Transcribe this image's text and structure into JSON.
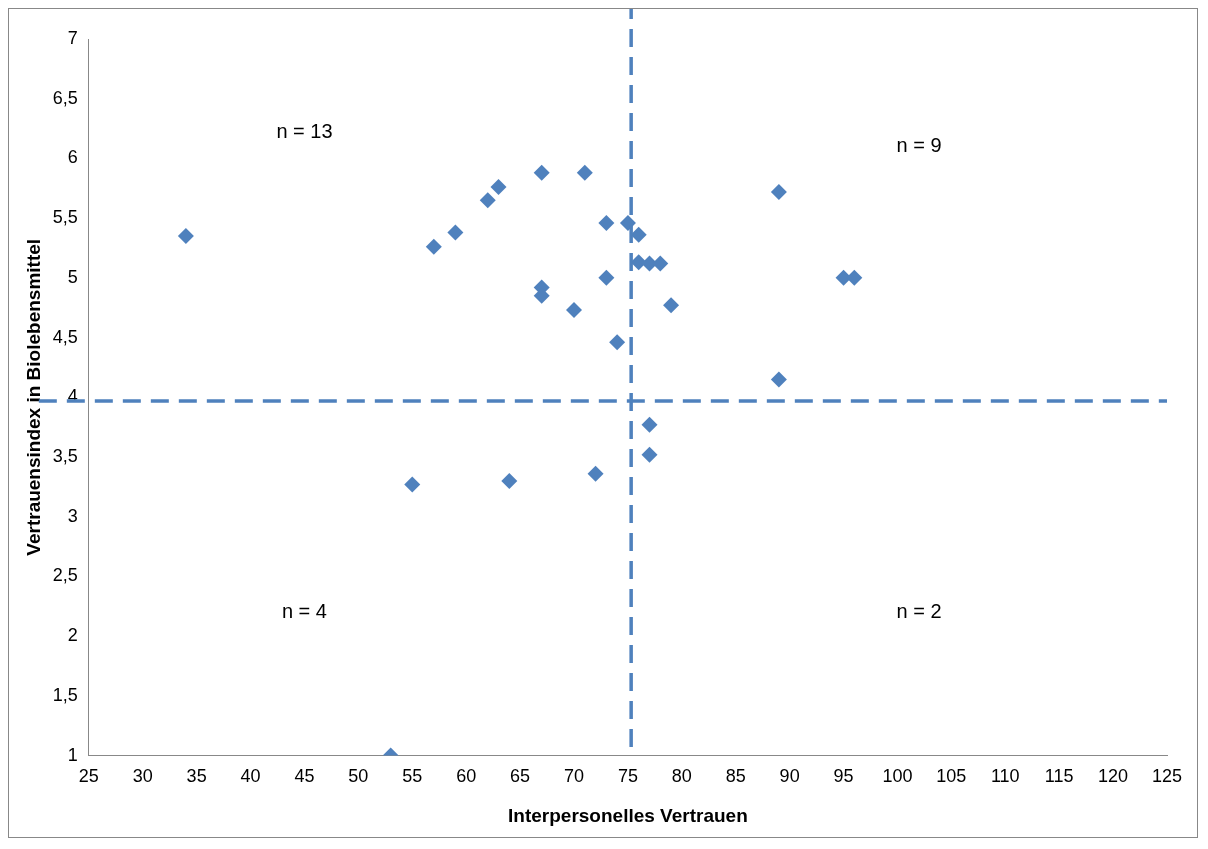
{
  "chart_data": {
    "type": "scatter",
    "xlabel": "Interpersonelles Vertrauen",
    "ylabel": "Vertrauensindex in Biolebensmittel",
    "series": [
      {
        "color": "#4f81bd",
        "x": [
          34,
          53,
          55,
          57,
          59,
          62,
          63,
          64,
          67,
          67,
          67,
          70,
          71,
          72,
          73,
          73,
          74,
          75,
          76,
          76,
          77,
          78,
          77,
          77,
          79,
          89,
          89,
          95,
          96
        ],
        "values": [
          5.35,
          1.0,
          3.27,
          5.26,
          5.38,
          5.65,
          5.76,
          3.3,
          5.88,
          4.92,
          4.85,
          4.73,
          5.88,
          3.36,
          5.46,
          5.0,
          4.46,
          5.46,
          5.36,
          5.13,
          5.12,
          5.12,
          3.77,
          3.52,
          4.77,
          5.72,
          4.15,
          5.0,
          5.0
        ]
      }
    ],
    "marker": "diamond",
    "grid": false,
    "legend": false,
    "xlim": [
      25,
      125
    ],
    "xticks": [
      25,
      30,
      35,
      40,
      45,
      50,
      55,
      60,
      65,
      70,
      75,
      80,
      85,
      90,
      95,
      100,
      105,
      110,
      115,
      120,
      125
    ],
    "ylim": [
      1,
      7
    ],
    "yticks": [
      {
        "value": 1,
        "label": "1"
      },
      {
        "value": 1.5,
        "label": "1,5"
      },
      {
        "value": 2,
        "label": "2"
      },
      {
        "value": 2.5,
        "label": "2,5"
      },
      {
        "value": 3,
        "label": "3"
      },
      {
        "value": 3.5,
        "label": "3,5"
      },
      {
        "value": 4,
        "label": "4"
      },
      {
        "value": 4.5,
        "label": "4,5"
      },
      {
        "value": 5,
        "label": "5"
      },
      {
        "value": 5.5,
        "label": "5,5"
      },
      {
        "value": 6,
        "label": "6"
      },
      {
        "value": 6.5,
        "label": "6,5"
      },
      {
        "value": 7,
        "label": "7"
      }
    ],
    "ref_lines": [
      {
        "axis": "x",
        "value": 75.3,
        "color": "#4f81bd",
        "line_style": "dashed"
      },
      {
        "axis": "y",
        "value": 3.97,
        "color": "#4f81bd",
        "line_style": "dashed"
      }
    ],
    "annotations": [
      "n = 13",
      "n = 9",
      "n = 4",
      "n = 2"
    ]
  }
}
